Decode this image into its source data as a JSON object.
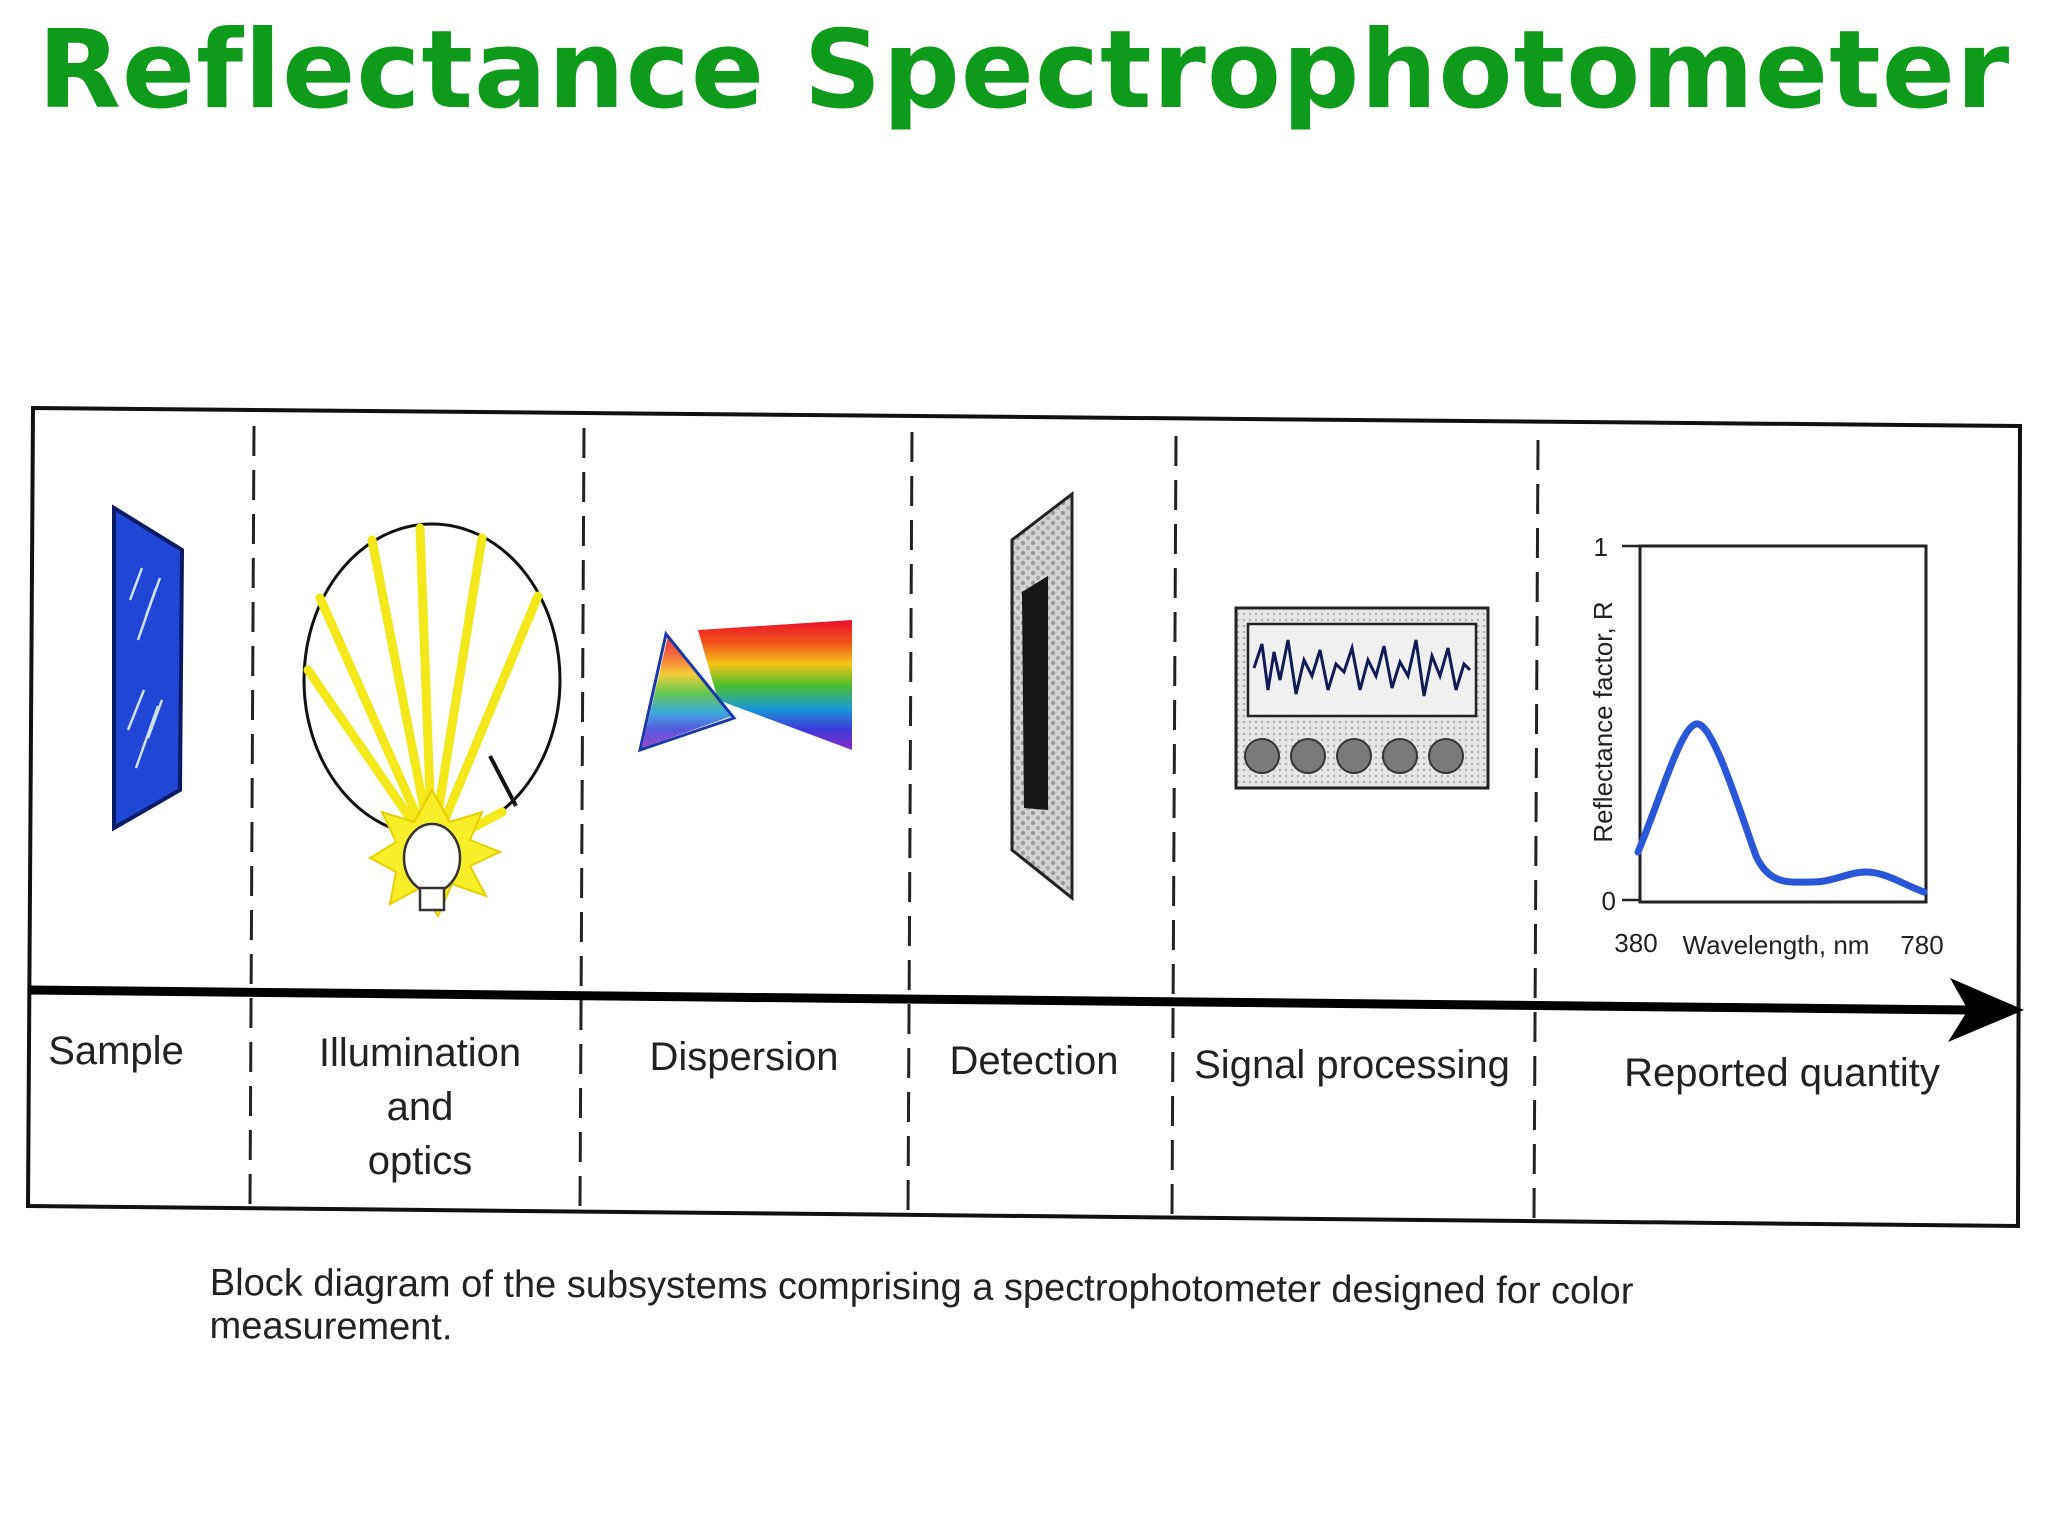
{
  "title": "Reflectance Spectrophotometer",
  "stages": [
    "Sample",
    "Illumination",
    "and",
    "optics",
    "Dispersion",
    "Detection",
    "Signal processing",
    "Reported quantity"
  ],
  "graph": {
    "y_max_label": "1",
    "y_min_label": "0",
    "x_min_label": "380",
    "x_max_label": "780",
    "x_title": "Wavelength, nm",
    "y_title": "Reflectance factor, R"
  },
  "caption": "Block diagram of the subsystems comprising a spectrophotometer designed for color measurement.",
  "colors": {
    "title": "#0e9a1a",
    "sample": "#2046d6",
    "rays": "#f2e81a",
    "curve": "#2a57d8"
  }
}
